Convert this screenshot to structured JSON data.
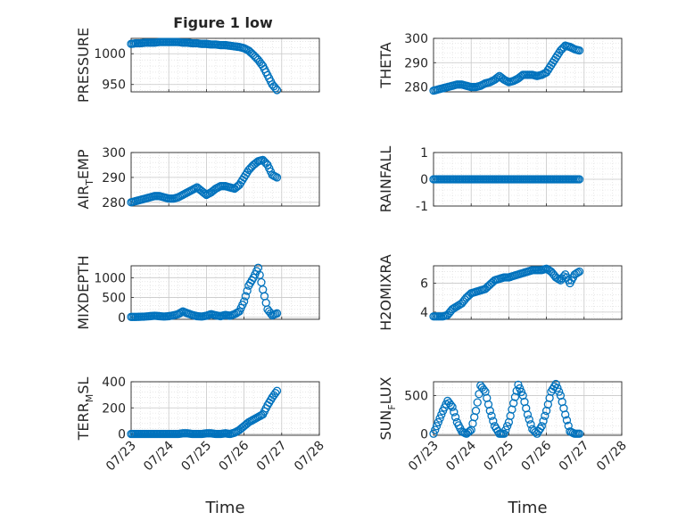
{
  "figure": {
    "title": "Figure 1 low"
  },
  "chart_data": [
    {
      "type": "scatter",
      "ylabel": "PRESSURE",
      "xlim": [
        "07/23",
        "07/28"
      ],
      "ylim": [
        938,
        1025
      ],
      "yticks": [
        950,
        1000
      ],
      "grid": true,
      "minor_grid": true,
      "marker": "open-circle",
      "color": "#0072BD",
      "points": [
        [
          "07/23 00:00",
          1016
        ],
        [
          "07/23 03:00",
          1017
        ],
        [
          "07/23 06:00",
          1017
        ],
        [
          "07/23 09:00",
          1018
        ],
        [
          "07/23 12:00",
          1018
        ],
        [
          "07/23 15:00",
          1018
        ],
        [
          "07/23 18:00",
          1019
        ],
        [
          "07/23 21:00",
          1019
        ],
        [
          "07/24 00:00",
          1019
        ],
        [
          "07/24 03:00",
          1019
        ],
        [
          "07/24 06:00",
          1019
        ],
        [
          "07/24 09:00",
          1018
        ],
        [
          "07/24 12:00",
          1018
        ],
        [
          "07/24 15:00",
          1017
        ],
        [
          "07/24 18:00",
          1017
        ],
        [
          "07/24 21:00",
          1016
        ],
        [
          "07/25 00:00",
          1016
        ],
        [
          "07/25 03:00",
          1015
        ],
        [
          "07/25 06:00",
          1015
        ],
        [
          "07/25 09:00",
          1014
        ],
        [
          "07/25 12:00",
          1014
        ],
        [
          "07/25 15:00",
          1013
        ],
        [
          "07/25 18:00",
          1012
        ],
        [
          "07/25 21:00",
          1011
        ],
        [
          "07/26 00:00",
          1009
        ],
        [
          "07/26 03:00",
          1005
        ],
        [
          "07/26 06:00",
          998
        ],
        [
          "07/26 09:00",
          990
        ],
        [
          "07/26 12:00",
          980
        ],
        [
          "07/26 15:00",
          965
        ],
        [
          "07/26 18:00",
          950
        ],
        [
          "07/26 21:00",
          941
        ]
      ]
    },
    {
      "type": "scatter",
      "ylabel": "THETA",
      "xlim": [
        "07/23",
        "07/28"
      ],
      "ylim": [
        278,
        300
      ],
      "yticks": [
        280,
        290,
        300
      ],
      "grid": true,
      "minor_grid": true,
      "marker": "open-circle",
      "color": "#0072BD",
      "points": [
        [
          "07/23 00:00",
          278.5
        ],
        [
          "07/23 03:00",
          279
        ],
        [
          "07/23 06:00",
          279.5
        ],
        [
          "07/23 09:00",
          280
        ],
        [
          "07/23 12:00",
          280.5
        ],
        [
          "07/23 15:00",
          281
        ],
        [
          "07/23 18:00",
          281
        ],
        [
          "07/23 21:00",
          280.5
        ],
        [
          "07/24 00:00",
          280
        ],
        [
          "07/24 03:00",
          280
        ],
        [
          "07/24 06:00",
          280.5
        ],
        [
          "07/24 09:00",
          281.5
        ],
        [
          "07/24 12:00",
          282
        ],
        [
          "07/24 15:00",
          283
        ],
        [
          "07/24 18:00",
          284.5
        ],
        [
          "07/24 21:00",
          283
        ],
        [
          "07/25 00:00",
          282
        ],
        [
          "07/25 03:00",
          282.5
        ],
        [
          "07/25 06:00",
          283.5
        ],
        [
          "07/25 09:00",
          285
        ],
        [
          "07/25 12:00",
          285
        ],
        [
          "07/25 15:00",
          285
        ],
        [
          "07/25 18:00",
          284.5
        ],
        [
          "07/25 21:00",
          285
        ],
        [
          "07/26 00:00",
          286
        ],
        [
          "07/26 03:00",
          289
        ],
        [
          "07/26 06:00",
          292
        ],
        [
          "07/26 09:00",
          295
        ],
        [
          "07/26 12:00",
          297
        ],
        [
          "07/26 15:00",
          296.5
        ],
        [
          "07/26 18:00",
          295.5
        ],
        [
          "07/26 21:00",
          295
        ]
      ]
    },
    {
      "type": "scatter",
      "ylabel": "AIR_TEMP",
      "xlim": [
        "07/23",
        "07/28"
      ],
      "ylim": [
        278.5,
        300
      ],
      "yticks": [
        280,
        290,
        300
      ],
      "grid": true,
      "minor_grid": true,
      "marker": "open-circle",
      "color": "#0072BD",
      "points": [
        [
          "07/23 00:00",
          280
        ],
        [
          "07/23 03:00",
          280.5
        ],
        [
          "07/23 06:00",
          281
        ],
        [
          "07/23 09:00",
          281.5
        ],
        [
          "07/23 12:00",
          282
        ],
        [
          "07/23 15:00",
          282.5
        ],
        [
          "07/23 18:00",
          282.5
        ],
        [
          "07/23 21:00",
          282
        ],
        [
          "07/24 00:00",
          281.5
        ],
        [
          "07/24 03:00",
          281.5
        ],
        [
          "07/24 06:00",
          282
        ],
        [
          "07/24 09:00",
          283
        ],
        [
          "07/24 12:00",
          284
        ],
        [
          "07/24 15:00",
          285
        ],
        [
          "07/24 18:00",
          286
        ],
        [
          "07/24 21:00",
          284.5
        ],
        [
          "07/25 00:00",
          283
        ],
        [
          "07/25 03:00",
          284
        ],
        [
          "07/25 06:00",
          285.5
        ],
        [
          "07/25 09:00",
          286.5
        ],
        [
          "07/25 12:00",
          286.5
        ],
        [
          "07/25 15:00",
          286
        ],
        [
          "07/25 18:00",
          285.5
        ],
        [
          "07/25 21:00",
          287
        ],
        [
          "07/26 00:00",
          290
        ],
        [
          "07/26 03:00",
          293
        ],
        [
          "07/26 06:00",
          295
        ],
        [
          "07/26 09:00",
          296.5
        ],
        [
          "07/26 12:00",
          297
        ],
        [
          "07/26 15:00",
          295
        ],
        [
          "07/26 18:00",
          291
        ],
        [
          "07/26 21:00",
          290
        ]
      ]
    },
    {
      "type": "scatter",
      "ylabel": "RAINFALL",
      "xlim": [
        "07/23",
        "07/28"
      ],
      "ylim": [
        -1,
        1
      ],
      "yticks": [
        -1,
        0,
        1
      ],
      "grid": true,
      "minor_grid": true,
      "marker": "open-circle",
      "color": "#0072BD",
      "points": [
        [
          "07/23 00:00",
          0
        ],
        [
          "07/23 03:00",
          0
        ],
        [
          "07/23 06:00",
          0
        ],
        [
          "07/23 09:00",
          0
        ],
        [
          "07/23 12:00",
          0
        ],
        [
          "07/23 15:00",
          0
        ],
        [
          "07/23 18:00",
          0
        ],
        [
          "07/23 21:00",
          0
        ],
        [
          "07/24 00:00",
          0
        ],
        [
          "07/24 03:00",
          0
        ],
        [
          "07/24 06:00",
          0
        ],
        [
          "07/24 09:00",
          0
        ],
        [
          "07/24 12:00",
          0
        ],
        [
          "07/24 15:00",
          0
        ],
        [
          "07/24 18:00",
          0
        ],
        [
          "07/24 21:00",
          0
        ],
        [
          "07/25 00:00",
          0
        ],
        [
          "07/25 03:00",
          0
        ],
        [
          "07/25 06:00",
          0
        ],
        [
          "07/25 09:00",
          0
        ],
        [
          "07/25 12:00",
          0
        ],
        [
          "07/25 15:00",
          0
        ],
        [
          "07/25 18:00",
          0
        ],
        [
          "07/25 21:00",
          0
        ],
        [
          "07/26 00:00",
          0
        ],
        [
          "07/26 03:00",
          0
        ],
        [
          "07/26 06:00",
          0
        ],
        [
          "07/26 09:00",
          0
        ],
        [
          "07/26 12:00",
          0
        ],
        [
          "07/26 15:00",
          0
        ],
        [
          "07/26 18:00",
          0
        ],
        [
          "07/26 21:00",
          0
        ]
      ]
    },
    {
      "type": "scatter",
      "ylabel": "MIXDEPTH",
      "xlim": [
        "07/23",
        "07/28"
      ],
      "ylim": [
        -50,
        1300
      ],
      "yticks": [
        0,
        500,
        1000
      ],
      "grid": true,
      "minor_grid": true,
      "marker": "open-circle",
      "color": "#0072BD",
      "points": [
        [
          "07/23 00:00",
          10
        ],
        [
          "07/23 03:00",
          10
        ],
        [
          "07/23 06:00",
          15
        ],
        [
          "07/23 09:00",
          20
        ],
        [
          "07/23 12:00",
          30
        ],
        [
          "07/23 15:00",
          40
        ],
        [
          "07/23 18:00",
          30
        ],
        [
          "07/23 21:00",
          20
        ],
        [
          "07/24 00:00",
          30
        ],
        [
          "07/24 03:00",
          50
        ],
        [
          "07/24 06:00",
          80
        ],
        [
          "07/24 09:00",
          150
        ],
        [
          "07/24 12:00",
          100
        ],
        [
          "07/24 15:00",
          60
        ],
        [
          "07/24 18:00",
          30
        ],
        [
          "07/24 21:00",
          20
        ],
        [
          "07/25 00:00",
          40
        ],
        [
          "07/25 03:00",
          80
        ],
        [
          "07/25 06:00",
          50
        ],
        [
          "07/25 09:00",
          30
        ],
        [
          "07/25 12:00",
          60
        ],
        [
          "07/25 15:00",
          40
        ],
        [
          "07/25 18:00",
          80
        ],
        [
          "07/25 21:00",
          150
        ],
        [
          "07/26 00:00",
          400
        ],
        [
          "07/26 03:00",
          800
        ],
        [
          "07/26 06:00",
          1000
        ],
        [
          "07/26 09:00",
          1250
        ],
        [
          "07/26 12:00",
          700
        ],
        [
          "07/26 15:00",
          200
        ],
        [
          "07/26 18:00",
          50
        ],
        [
          "07/26 21:00",
          100
        ]
      ]
    },
    {
      "type": "scatter",
      "ylabel": "H2OMIXRA",
      "xlim": [
        "07/23",
        "07/28"
      ],
      "ylim": [
        3.5,
        7.2
      ],
      "yticks": [
        4,
        6
      ],
      "grid": true,
      "minor_grid": true,
      "marker": "open-circle",
      "color": "#0072BD",
      "points": [
        [
          "07/23 00:00",
          3.7
        ],
        [
          "07/23 03:00",
          3.7
        ],
        [
          "07/23 06:00",
          3.7
        ],
        [
          "07/23 09:00",
          3.8
        ],
        [
          "07/23 12:00",
          4.2
        ],
        [
          "07/23 15:00",
          4.4
        ],
        [
          "07/23 18:00",
          4.6
        ],
        [
          "07/23 21:00",
          5
        ],
        [
          "07/24 00:00",
          5.3
        ],
        [
          "07/24 03:00",
          5.4
        ],
        [
          "07/24 06:00",
          5.5
        ],
        [
          "07/24 09:00",
          5.6
        ],
        [
          "07/24 12:00",
          5.9
        ],
        [
          "07/24 15:00",
          6.2
        ],
        [
          "07/24 18:00",
          6.3
        ],
        [
          "07/24 21:00",
          6.4
        ],
        [
          "07/25 00:00",
          6.4
        ],
        [
          "07/25 03:00",
          6.5
        ],
        [
          "07/25 06:00",
          6.6
        ],
        [
          "07/25 09:00",
          6.7
        ],
        [
          "07/25 12:00",
          6.8
        ],
        [
          "07/25 15:00",
          6.9
        ],
        [
          "07/25 18:00",
          6.9
        ],
        [
          "07/25 21:00",
          6.9
        ],
        [
          "07/26 00:00",
          7
        ],
        [
          "07/26 03:00",
          6.8
        ],
        [
          "07/26 06:00",
          6.4
        ],
        [
          "07/26 09:00",
          6.2
        ],
        [
          "07/26 12:00",
          6.6
        ],
        [
          "07/26 15:00",
          6
        ],
        [
          "07/26 18:00",
          6.6
        ],
        [
          "07/26 21:00",
          6.8
        ]
      ]
    },
    {
      "type": "scatter",
      "ylabel": "TERR_MSL",
      "xlim": [
        "07/23",
        "07/28"
      ],
      "ylim": [
        -10,
        400
      ],
      "yticks": [
        0,
        200,
        400
      ],
      "grid": true,
      "minor_grid": true,
      "marker": "open-circle",
      "color": "#0072BD",
      "points": [
        [
          "07/23 00:00",
          0
        ],
        [
          "07/23 03:00",
          0
        ],
        [
          "07/23 06:00",
          0
        ],
        [
          "07/23 09:00",
          0
        ],
        [
          "07/23 12:00",
          0
        ],
        [
          "07/23 15:00",
          0
        ],
        [
          "07/23 18:00",
          0
        ],
        [
          "07/23 21:00",
          0
        ],
        [
          "07/24 00:00",
          0
        ],
        [
          "07/24 03:00",
          0
        ],
        [
          "07/24 06:00",
          0
        ],
        [
          "07/24 09:00",
          5
        ],
        [
          "07/24 12:00",
          5
        ],
        [
          "07/24 15:00",
          0
        ],
        [
          "07/24 18:00",
          0
        ],
        [
          "07/24 21:00",
          0
        ],
        [
          "07/25 00:00",
          5
        ],
        [
          "07/25 03:00",
          5
        ],
        [
          "07/25 06:00",
          0
        ],
        [
          "07/25 09:00",
          0
        ],
        [
          "07/25 12:00",
          5
        ],
        [
          "07/25 15:00",
          0
        ],
        [
          "07/25 18:00",
          10
        ],
        [
          "07/25 21:00",
          30
        ],
        [
          "07/26 00:00",
          60
        ],
        [
          "07/26 03:00",
          90
        ],
        [
          "07/26 06:00",
          110
        ],
        [
          "07/26 09:00",
          130
        ],
        [
          "07/26 12:00",
          150
        ],
        [
          "07/26 15:00",
          220
        ],
        [
          "07/26 18:00",
          280
        ],
        [
          "07/26 21:00",
          330
        ]
      ]
    },
    {
      "type": "scatter",
      "ylabel": "SUN_FLUX",
      "xlim": [
        "07/23",
        "07/28"
      ],
      "ylim": [
        -20,
        680
      ],
      "yticks": [
        0,
        500
      ],
      "grid": true,
      "minor_grid": true,
      "marker": "open-circle",
      "color": "#0072BD",
      "points": [
        [
          "07/23 00:00",
          0
        ],
        [
          "07/23 03:00",
          150
        ],
        [
          "07/23 06:00",
          300
        ],
        [
          "07/23 09:00",
          430
        ],
        [
          "07/23 12:00",
          350
        ],
        [
          "07/23 15:00",
          150
        ],
        [
          "07/23 18:00",
          30
        ],
        [
          "07/23 21:00",
          0
        ],
        [
          "07/24 00:00",
          50
        ],
        [
          "07/24 03:00",
          300
        ],
        [
          "07/24 06:00",
          630
        ],
        [
          "07/24 09:00",
          550
        ],
        [
          "07/24 12:00",
          300
        ],
        [
          "07/24 15:00",
          100
        ],
        [
          "07/24 18:00",
          0
        ],
        [
          "07/24 21:00",
          0
        ],
        [
          "07/25 00:00",
          150
        ],
        [
          "07/25 03:00",
          400
        ],
        [
          "07/25 06:00",
          640
        ],
        [
          "07/25 09:00",
          500
        ],
        [
          "07/25 12:00",
          250
        ],
        [
          "07/25 15:00",
          60
        ],
        [
          "07/25 18:00",
          0
        ],
        [
          "07/25 21:00",
          100
        ],
        [
          "07/26 00:00",
          300
        ],
        [
          "07/26 03:00",
          550
        ],
        [
          "07/26 06:00",
          650
        ],
        [
          "07/26 09:00",
          500
        ],
        [
          "07/26 12:00",
          250
        ],
        [
          "07/26 15:00",
          30
        ],
        [
          "07/26 18:00",
          0
        ],
        [
          "07/26 21:00",
          0
        ]
      ]
    }
  ],
  "axis_labels": {
    "ylabels_display": [
      [
        "PRESSURE"
      ],
      [
        "THETA"
      ],
      [
        "AIR",
        "T",
        "EMP"
      ],
      [
        "RAINFALL"
      ],
      [
        "MIXDEPTH"
      ],
      [
        "H2OMIXRA"
      ],
      [
        "TERR",
        "M",
        "SL"
      ],
      [
        "SUN",
        "F",
        "LUX"
      ]
    ],
    "xticks": [
      "07/23",
      "07/24",
      "07/25",
      "07/26",
      "07/27",
      "07/28"
    ],
    "xlabel": "Time"
  }
}
